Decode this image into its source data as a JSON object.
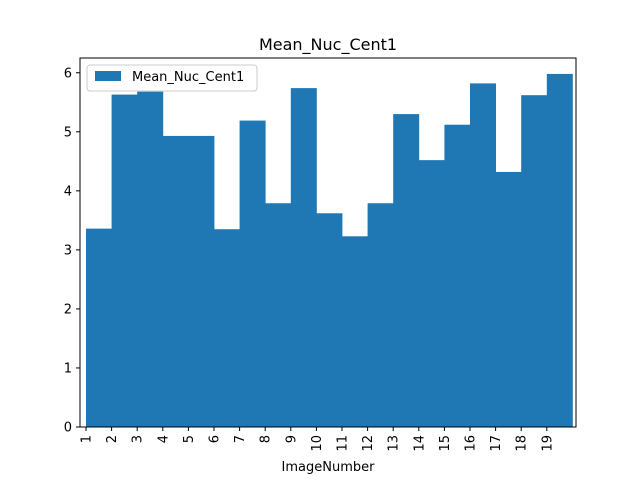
{
  "chart_data": {
    "type": "bar",
    "title": "Mean_Nuc_Cent1",
    "xlabel": "ImageNumber",
    "ylabel": "",
    "categories": [
      "1",
      "2",
      "3",
      "4",
      "5",
      "6",
      "7",
      "8",
      "9",
      "10",
      "11",
      "12",
      "13",
      "14",
      "15",
      "16",
      "17",
      "18",
      "19"
    ],
    "series": [
      {
        "name": "Mean_Nuc_Cent1",
        "values": [
          3.36,
          5.63,
          5.68,
          4.93,
          4.93,
          3.35,
          5.19,
          3.79,
          5.74,
          3.62,
          3.23,
          3.79,
          5.3,
          4.52,
          5.12,
          5.82,
          4.32,
          5.62,
          5.98
        ],
        "color": "#1f77b4"
      }
    ],
    "ylim": [
      0,
      6.25
    ],
    "yticks": [
      0,
      1,
      2,
      3,
      4,
      5,
      6
    ],
    "legend": "top-left",
    "grid": false
  }
}
